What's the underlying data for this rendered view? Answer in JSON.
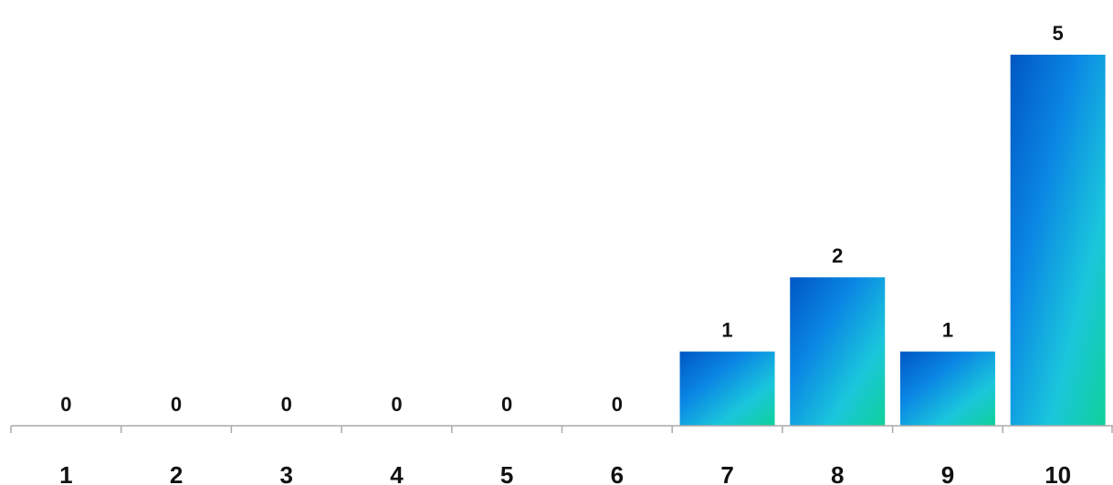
{
  "chart_data": {
    "type": "bar",
    "categories": [
      "1",
      "2",
      "3",
      "4",
      "5",
      "6",
      "7",
      "8",
      "9",
      "10"
    ],
    "values": [
      0,
      0,
      0,
      0,
      0,
      0,
      1,
      2,
      1,
      5
    ],
    "title": "",
    "xlabel": "",
    "ylabel": "",
    "ylim": [
      0,
      5
    ],
    "grid": false,
    "legend": "none",
    "data_labels": true,
    "colors": {
      "bar_top": "#0057c4",
      "bar_mid": "#1a9fe3",
      "bar_bottom": "#0fd19a",
      "axis": "#aaaaaa",
      "text": "#111111"
    }
  }
}
